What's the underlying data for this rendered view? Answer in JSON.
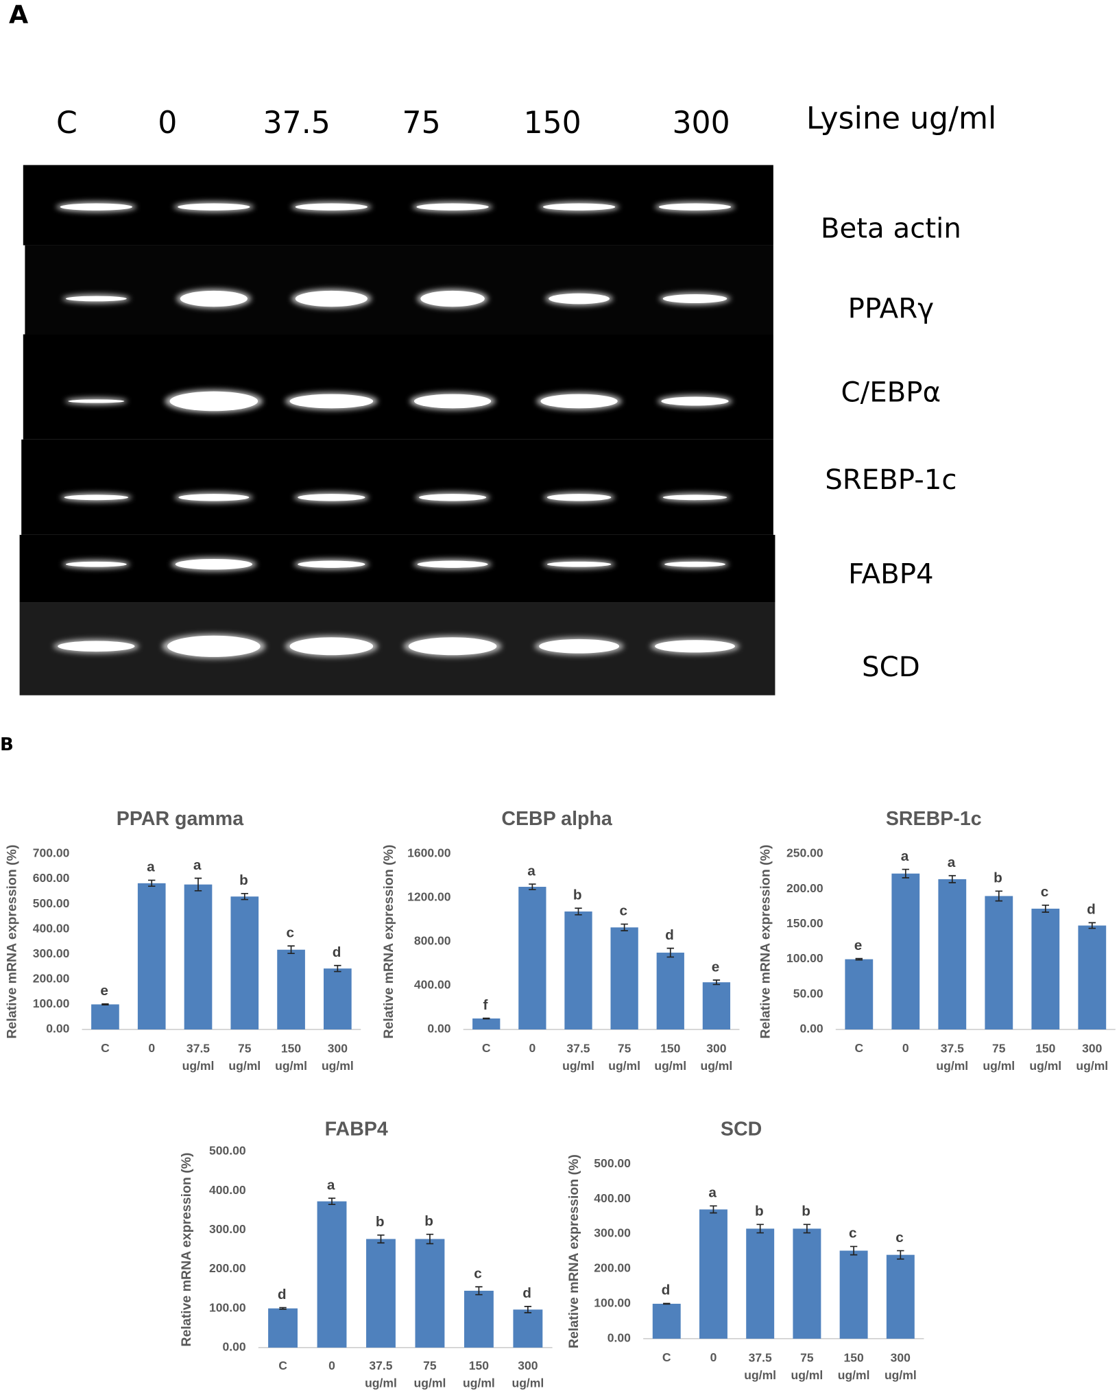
{
  "panel_labels": [
    "A",
    "B"
  ],
  "gel": {
    "lanes": [
      "C",
      "0",
      "37.5",
      "75",
      "150",
      "300"
    ],
    "unit": "Lysine ug/ml",
    "genes": [
      "Beta actin",
      "PPARγ",
      "C/EBPα",
      "SREBP-1c",
      "FABP4",
      "SCD"
    ]
  },
  "chart_data": [
    {
      "type": "bar",
      "title": "PPAR gamma",
      "ylabel": "Relative mRNA expression (%)",
      "categories": [
        "C",
        "0",
        "37.5 ug/ml",
        "75 ug/ml",
        "150 ug/ml",
        "300 ug/ml"
      ],
      "values": [
        100,
        583,
        578,
        530,
        318,
        243
      ],
      "errors": [
        2,
        12,
        25,
        12,
        15,
        12
      ],
      "annotations": [
        "e",
        "a",
        "a",
        "b",
        "c",
        "d"
      ],
      "color": "#4f81bd",
      "ylim": [
        0,
        700
      ],
      "yticks": [
        {
          "value": 0,
          "label": "0.00"
        },
        {
          "value": 100,
          "label": "100.00"
        },
        {
          "value": 200,
          "label": "200.00"
        },
        {
          "value": 300,
          "label": "300.00"
        },
        {
          "value": 400,
          "label": "400.00"
        },
        {
          "value": 500,
          "label": "500.00"
        },
        {
          "value": 600,
          "label": "600.00"
        },
        {
          "value": 700,
          "label": "700.00"
        }
      ]
    },
    {
      "type": "bar",
      "title": "CEBP alpha",
      "ylabel": "Relative mRNA expression (%)",
      "categories": [
        "C",
        "0",
        "37.5 ug/ml",
        "75 ug/ml",
        "150 ug/ml",
        "300 ug/ml"
      ],
      "values": [
        100,
        1300,
        1075,
        930,
        700,
        430
      ],
      "errors": [
        3,
        25,
        30,
        30,
        40,
        20
      ],
      "annotations": [
        "f",
        "a",
        "b",
        "c",
        "d",
        "e"
      ],
      "color": "#4f81bd",
      "ylim": [
        0,
        1600
      ],
      "yticks": [
        {
          "value": 0,
          "label": "0.00"
        },
        {
          "value": 400,
          "label": "400.00"
        },
        {
          "value": 800,
          "label": "800.00"
        },
        {
          "value": 1200,
          "label": "1200.00"
        },
        {
          "value": 1600,
          "label": "1600.00"
        }
      ]
    },
    {
      "type": "bar",
      "title": "SREBP-1c",
      "ylabel": "Relative mRNA expression (%)",
      "categories": [
        "C",
        "0",
        "37.5 ug/ml",
        "75 ug/ml",
        "150 ug/ml",
        "300 ug/ml"
      ],
      "values": [
        100,
        222,
        214,
        190,
        172,
        148
      ],
      "errors": [
        1,
        6,
        5,
        7,
        5,
        4
      ],
      "annotations": [
        "e",
        "a",
        "a",
        "b",
        "c",
        "d"
      ],
      "color": "#4f81bd",
      "ylim": [
        0,
        250
      ],
      "yticks": [
        {
          "value": 0,
          "label": "0.00"
        },
        {
          "value": 50,
          "label": "50.00"
        },
        {
          "value": 100,
          "label": "100.00"
        },
        {
          "value": 150,
          "label": "150.00"
        },
        {
          "value": 200,
          "label": "200.00"
        },
        {
          "value": 250,
          "label": "250.00"
        }
      ]
    },
    {
      "type": "bar",
      "title": "FABP4",
      "ylabel": "Relative mRNA expression (%)",
      "categories": [
        "C",
        "0",
        "37.5 ug/ml",
        "75 ug/ml",
        "150 ug/ml",
        "300 ug/ml"
      ],
      "values": [
        100,
        373,
        277,
        277,
        145,
        97
      ],
      "errors": [
        2,
        8,
        10,
        12,
        10,
        8
      ],
      "annotations": [
        "d",
        "a",
        "b",
        "b",
        "c",
        "d"
      ],
      "color": "#4f81bd",
      "ylim": [
        0,
        500
      ],
      "yticks": [
        {
          "value": 0,
          "label": "0.00"
        },
        {
          "value": 100,
          "label": "100.00"
        },
        {
          "value": 200,
          "label": "200.00"
        },
        {
          "value": 300,
          "label": "300.00"
        },
        {
          "value": 400,
          "label": "400.00"
        },
        {
          "value": 500,
          "label": "500.00"
        }
      ]
    },
    {
      "type": "bar",
      "title": "SCD",
      "ylabel": "Relative mRNA expression (%)",
      "categories": [
        "C",
        "0",
        "37.5 ug/ml",
        "75 ug/ml",
        "150 ug/ml",
        "300 ug/ml"
      ],
      "values": [
        100,
        370,
        315,
        315,
        252,
        240
      ],
      "errors": [
        1,
        10,
        12,
        12,
        12,
        12
      ],
      "annotations": [
        "d",
        "a",
        "b",
        "b",
        "c",
        "c"
      ],
      "color": "#4f81bd",
      "ylim": [
        0,
        500
      ],
      "yticks": [
        {
          "value": 0,
          "label": "0.00"
        },
        {
          "value": 100,
          "label": "100.00"
        },
        {
          "value": 200,
          "label": "200.00"
        },
        {
          "value": 300,
          "label": "300.00"
        },
        {
          "value": 400,
          "label": "400.00"
        },
        {
          "value": 500,
          "label": "500.00"
        }
      ]
    }
  ]
}
